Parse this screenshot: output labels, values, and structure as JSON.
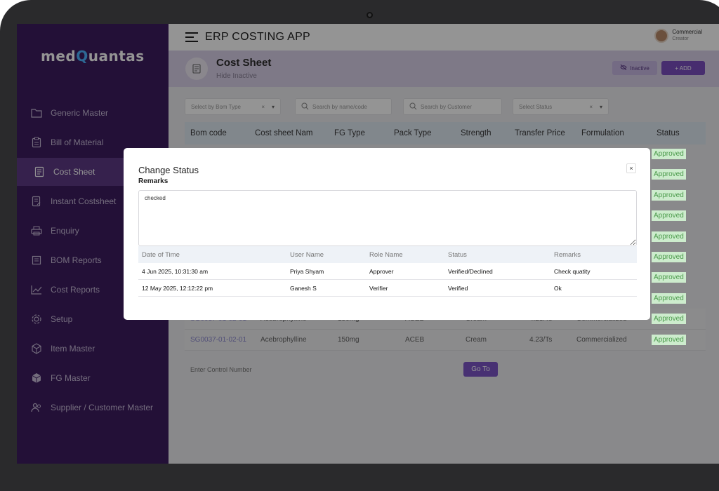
{
  "app": {
    "logo_prefix": "med",
    "logo_q": "Q",
    "logo_suffix": "uantas",
    "title": "ERP COSTING APP"
  },
  "user": {
    "name": "Commercial",
    "role": "Creator"
  },
  "sidebar": {
    "items": [
      {
        "label": "Generic Master",
        "icon": "folder-icon"
      },
      {
        "label": "Bill of Material",
        "icon": "clipboard-icon"
      },
      {
        "label": "Cost Sheet",
        "icon": "document-icon",
        "active": true
      },
      {
        "label": "Instant Costsheet",
        "icon": "document-edit-icon"
      },
      {
        "label": "Enquiry",
        "icon": "printer-icon"
      },
      {
        "label": "BOM Reports",
        "icon": "report-icon"
      },
      {
        "label": "Cost Reports",
        "icon": "line-chart-icon"
      },
      {
        "label": "Setup",
        "icon": "gear-icon"
      },
      {
        "label": "Item Master",
        "icon": "cube-icon"
      },
      {
        "label": "FG Master",
        "icon": "package-icon"
      },
      {
        "label": "Supplier / Customer Master",
        "icon": "users-icon"
      }
    ]
  },
  "page": {
    "title": "Cost Sheet",
    "subtitle": "Hide Inactive",
    "inactive_label": "Inactive",
    "add_label": "+ ADD"
  },
  "filters": {
    "bom_type": "Select by Bom Type",
    "search_name": "Search by name/code",
    "search_customer": "Search by Customer",
    "status": "Select Status",
    "clear": "×"
  },
  "table": {
    "columns": [
      "Bom code",
      "Cost sheet Nam",
      "FG Type",
      "Pack Type",
      "Strength",
      "Transfer Price",
      "Formulation",
      "Status"
    ],
    "statuses": [
      "Approved",
      "Approved",
      "Approved",
      "Approved",
      "Approved",
      "Approved",
      "Approved",
      "Approved",
      "Approved",
      "Approved"
    ],
    "rows": [
      {
        "bom": "SG0037-01-02-01",
        "name": "Acebrophylline",
        "fg": "150mg",
        "pack": "ACEB",
        "strength": "Cream",
        "price": "4.23/Ts",
        "formulation": "Commercialized",
        "status": "Approved"
      },
      {
        "bom": "SG0037-01-02-01",
        "name": "Acebrophylline",
        "fg": "150mg",
        "pack": "ACEB",
        "strength": "Cream",
        "price": "4.23/Ts",
        "formulation": "Commercialized",
        "status": "Approved"
      }
    ]
  },
  "control": {
    "label": "Enter Control Number",
    "goto_label": "Go To"
  },
  "modal": {
    "title": "Change Status",
    "close": "×",
    "remarks_label": "Remarks",
    "remarks_value": "checked",
    "history_columns": [
      "Date of Time",
      "User Name",
      "Role Name",
      "Status",
      "Remarks"
    ],
    "history": [
      {
        "date": "4 Jun 2025, 10:31:30 am",
        "user": "Priya Shyam",
        "role": "Approver",
        "status": "Verified/Declined",
        "remarks": "Check quatity"
      },
      {
        "date": "12 May 2025, 12:12:22 pm",
        "user": "Ganesh S",
        "role": "Verifier",
        "status": "Verified",
        "remarks": "Ok"
      }
    ]
  },
  "colors": {
    "sidebar": "#3d1c60",
    "accent": "#7a4fc0",
    "approved": "#4a9a4a"
  }
}
